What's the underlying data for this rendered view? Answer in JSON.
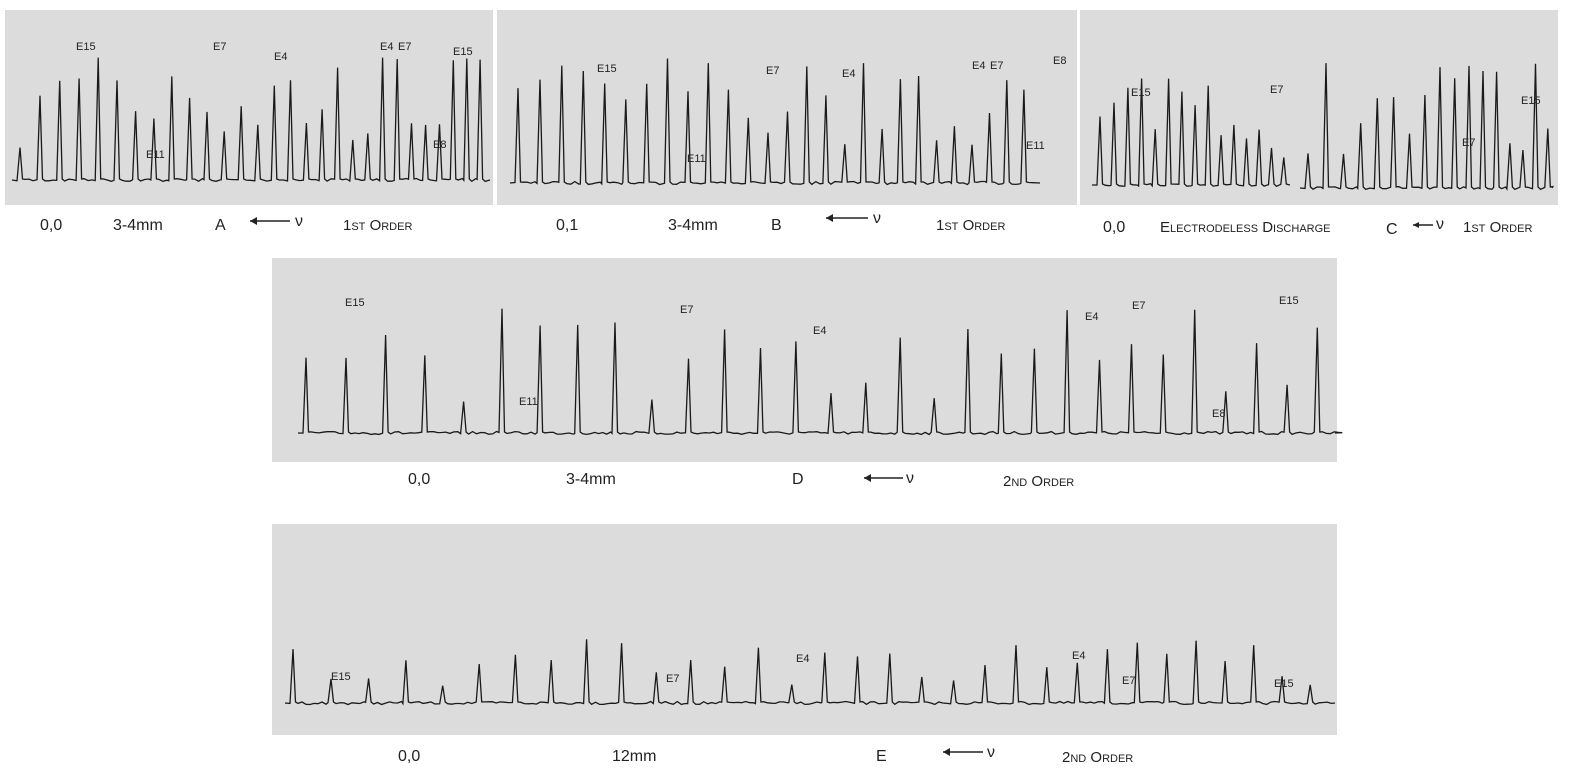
{
  "panels": [
    {
      "labels": [
        "E15",
        "E7",
        "E4",
        "E4",
        "E7",
        "E15",
        "E11",
        "E8"
      ],
      "caption": {
        "pressure": "0,0",
        "length": "3-4mm",
        "letter": "A",
        "nu": "ν",
        "order": "1st Order"
      }
    },
    {
      "labels": [
        "E15",
        "E7",
        "E4",
        "E11",
        "E4",
        "E7",
        "E8",
        "E11"
      ],
      "caption": {
        "pressure": "0,1",
        "length": "3-4mm",
        "letter": "B",
        "nu": "ν",
        "order": "1st Order"
      }
    },
    {
      "labels": [
        "E15",
        "E7",
        "E15",
        "E7"
      ],
      "caption": {
        "pressure": "0,0",
        "length": "Electrodeless Discharge",
        "letter": "C",
        "nu": "ν",
        "order": "1st Order"
      }
    },
    {
      "labels": [
        "E15",
        "E11",
        "E7",
        "E4",
        "E4",
        "E7",
        "E15",
        "E8"
      ],
      "caption": {
        "pressure": "0,0",
        "length": "3-4mm",
        "letter": "D",
        "nu": "ν",
        "order": "2nd Order"
      }
    },
    {
      "labels": [
        "E15",
        "E7",
        "E4",
        "E4",
        "E7",
        "E15"
      ],
      "caption": {
        "pressure": "0,0",
        "length": "12mm",
        "letter": "E",
        "nu": "ν",
        "order": "2nd Order"
      }
    }
  ]
}
